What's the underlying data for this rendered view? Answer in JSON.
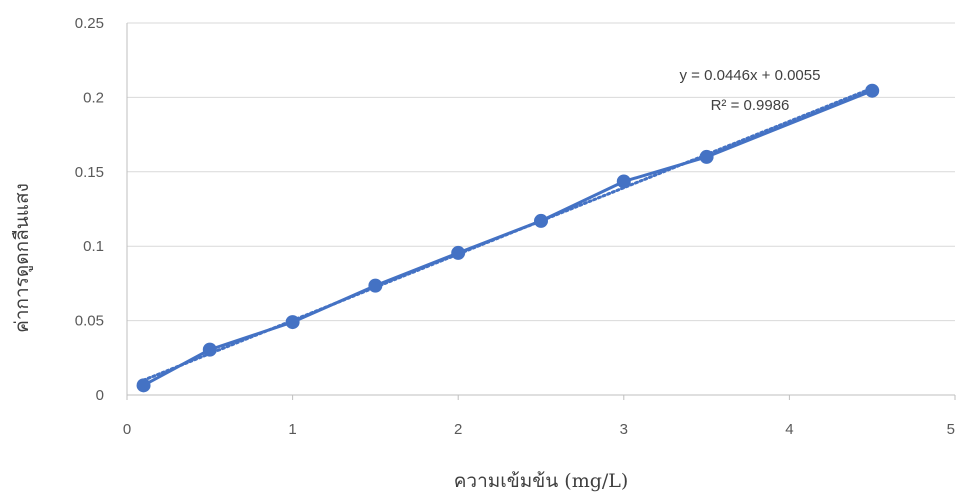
{
  "chart_data": {
    "type": "scatter",
    "xlabel": "ความเข้มข้น (mg/L)",
    "ylabel": "ค่าการดูดกลืนแสง",
    "xlim": [
      0,
      5
    ],
    "ylim": [
      0,
      0.25
    ],
    "x_ticks": [
      "0",
      "1",
      "2",
      "3",
      "4",
      "5"
    ],
    "y_ticks": [
      "0",
      "0.05",
      "0.1",
      "0.15",
      "0.2",
      "0.25"
    ],
    "grid": "horizontal",
    "series": [
      {
        "color": "#4472C4",
        "style": "line-with-markers",
        "x": [
          0.1,
          0.5,
          1.0,
          1.5,
          2.0,
          2.5,
          3.0,
          3.5,
          4.5
        ],
        "y": [
          0.0065,
          0.0305,
          0.049,
          0.0735,
          0.0955,
          0.117,
          0.1435,
          0.16,
          0.2045
        ]
      }
    ],
    "trendline": {
      "type": "linear",
      "style": "dotted",
      "color": "#4472C4",
      "slope": 0.0446,
      "intercept": 0.0055,
      "x_range": [
        0.1,
        4.5
      ],
      "equation": "y = 0.0446x + 0.0055",
      "r_squared": "R² = 0.9986"
    }
  }
}
